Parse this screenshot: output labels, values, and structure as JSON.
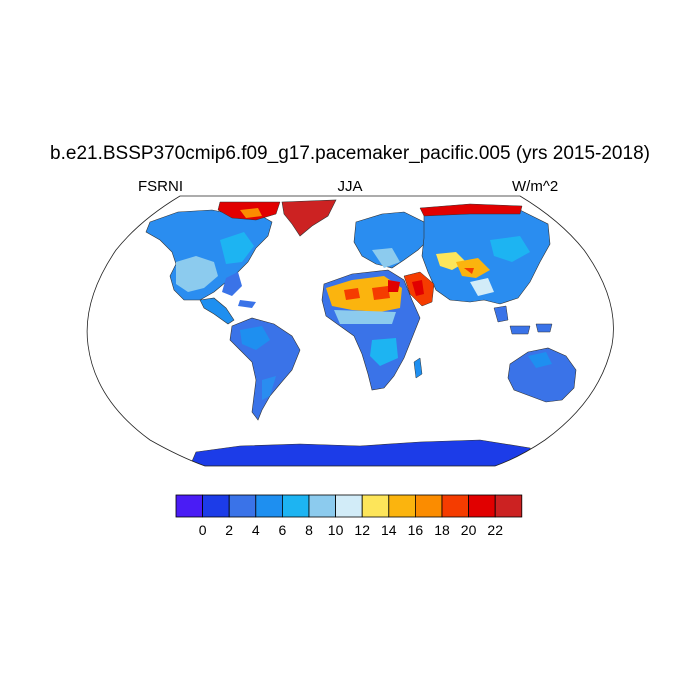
{
  "title": "b.e21.BSSP370cmip6.f09_g17.pacemaker_pacific.005 (yrs 2015-2018)",
  "variable": "FSRNI",
  "season": "JJA",
  "units": "W/m^2",
  "projection": "Robinson",
  "colorbar": {
    "levels": [
      "0",
      "2",
      "4",
      "6",
      "8",
      "10",
      "12",
      "14",
      "16",
      "18",
      "20",
      "22"
    ],
    "colors": [
      "#4a1cf5",
      "#1c3ce8",
      "#3a73e8",
      "#1e8ff0",
      "#1db4f2",
      "#8ccbee",
      "#d2ecf8",
      "#fde55a",
      "#fbb40e",
      "#fb8c00",
      "#f53c00",
      "#e10000",
      "#cc2222"
    ]
  }
}
